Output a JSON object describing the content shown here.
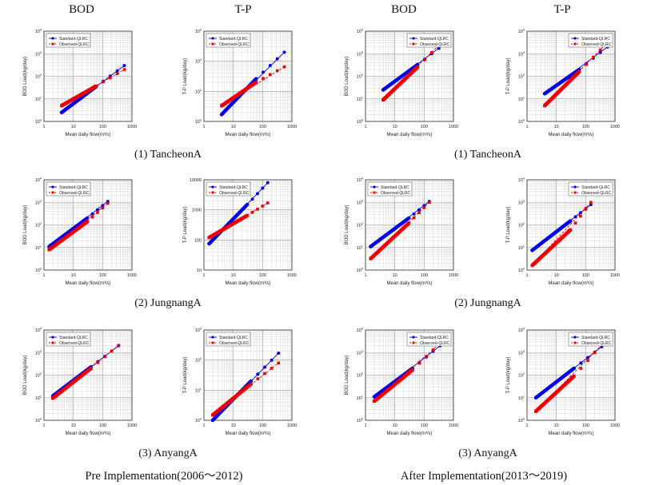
{
  "headers": {
    "pre_bod": "BOD",
    "pre_tp": "T-P",
    "post_bod": "BOD",
    "post_tp": "T-P"
  },
  "row_captions": {
    "pre": [
      "(1)  TancheonA",
      "(2)  JungnangA",
      "(3)  AnyangA"
    ],
    "post": [
      "(1)  TancheonA",
      "(2)  JungnangA",
      "(3)  AnyangA"
    ]
  },
  "footers": {
    "pre": "Pre Implementation(2006～2012)",
    "post": "After Implementation(2013～2019)"
  },
  "colors": {
    "standard": "#0000ee",
    "observed": "#ee0000",
    "grid": "#c8c8c8"
  },
  "chart_data": [
    {
      "id": "p11",
      "type": "line",
      "scale": "log-log",
      "xlabel": "Mean daily flow(m³/s)",
      "ylabel": "BOD Load(kg/day)",
      "xlim": [
        1,
        1000
      ],
      "ylim": [
        1,
        10000
      ],
      "xticks": [
        "1",
        "10",
        "100",
        "1000"
      ],
      "yticks": [
        "10^0",
        "10^1",
        "10^2",
        "10^3",
        "10^4"
      ],
      "legend": "top-left",
      "series": [
        {
          "name": "Standard-QLRC",
          "x0": 4,
          "x1": 60,
          "xe": 550,
          "y0": 2.5,
          "y1": 35,
          "ye": 300
        },
        {
          "name": "Observed-QLRC",
          "x0": 4,
          "x1": 60,
          "xe": 550,
          "y0": 5,
          "y1": 37,
          "ye": 200
        }
      ]
    },
    {
      "id": "p12",
      "type": "line",
      "scale": "log-log",
      "xlabel": "Mean daily flow(m³/s)",
      "ylabel": "T-P Load(kg/day)",
      "xlim": [
        1,
        1000
      ],
      "ylim": [
        1,
        1000
      ],
      "xticks": [
        "1",
        "10",
        "100",
        "1000"
      ],
      "yticks": [
        "10^0",
        "10^1",
        "10^2",
        "10^3"
      ],
      "legend": "top-left",
      "series": [
        {
          "name": "Standard-QLRC",
          "x0": 4,
          "x1": 60,
          "xe": 550,
          "y0": 1.7,
          "y1": 26,
          "ye": 200
        },
        {
          "name": "Observed-QLRC",
          "x0": 4,
          "x1": 60,
          "xe": 550,
          "y0": 3.3,
          "y1": 20,
          "ye": 65
        }
      ]
    },
    {
      "id": "p13",
      "type": "line",
      "scale": "log-log",
      "xlabel": "Mean daily flow(m³/s)",
      "ylabel": "BOD Load(kg/day)",
      "xlim": [
        1,
        1000
      ],
      "ylim": [
        1,
        10000
      ],
      "xticks": [
        "1",
        "10",
        "100",
        "1000"
      ],
      "yticks": [
        "10^0",
        "10^1",
        "10^2",
        "10^3",
        "10^4"
      ],
      "legend": "top-right",
      "series": [
        {
          "name": "Standard-QLRC",
          "x0": 4,
          "x1": 60,
          "xe": 550,
          "y0": 25,
          "y1": 330,
          "ye": 3000
        },
        {
          "name": "Observed-QLRC",
          "x0": 4,
          "x1": 60,
          "xe": 550,
          "y0": 9,
          "y1": 260,
          "ye": 4800
        }
      ]
    },
    {
      "id": "p14",
      "type": "line",
      "scale": "log-log",
      "xlabel": "Mean daily flow(m³/s)",
      "ylabel": "T-P Load(kg/day)",
      "xlim": [
        1,
        1000
      ],
      "ylim": [
        1,
        10000
      ],
      "xticks": [
        "1",
        "10",
        "100",
        "1000"
      ],
      "yticks": [
        "10^0",
        "10^1",
        "10^2",
        "10^3",
        "10^4"
      ],
      "legend": "top-right",
      "series": [
        {
          "name": "Standard-QLRC",
          "x0": 4,
          "x1": 60,
          "xe": 550,
          "y0": 17,
          "y1": 200,
          "ye": 2000
        },
        {
          "name": "Observed-QLRC",
          "x0": 4,
          "x1": 60,
          "xe": 550,
          "y0": 5,
          "y1": 160,
          "ye": 3100
        }
      ]
    },
    {
      "id": "p21",
      "type": "line",
      "scale": "log-log",
      "xlabel": "Mean daily flow(m³/s)",
      "ylabel": "BOD Load(kg/day)",
      "xlim": [
        1,
        1000
      ],
      "ylim": [
        1,
        10000
      ],
      "xticks": [
        "1",
        "10",
        "100",
        "1000"
      ],
      "yticks": [
        "10^0",
        "10^1",
        "10^2",
        "10^3",
        "10^4"
      ],
      "legend": "top-left",
      "series": [
        {
          "name": "Standard-QLRC",
          "x0": 1.5,
          "x1": 30,
          "xe": 150,
          "y0": 11,
          "y1": 200,
          "ye": 1100
        },
        {
          "name": "Observed-QLRC",
          "x0": 1.5,
          "x1": 30,
          "xe": 150,
          "y0": 8,
          "y1": 140,
          "ye": 900
        }
      ]
    },
    {
      "id": "p22",
      "type": "line",
      "scale": "log-log",
      "xlabel": "Mean daily flow(m³/s)",
      "ylabel": "T-P Load(kg/day)",
      "xlim": [
        1,
        1000
      ],
      "ylim": [
        10,
        10000
      ],
      "xticks": [
        "1",
        "10",
        "100",
        "1000"
      ],
      "yticks": [
        "10",
        "100",
        "1000",
        "10000"
      ],
      "legend": "top-left",
      "series": [
        {
          "name": "Standard-QLRC",
          "x0": 1.5,
          "x1": 30,
          "xe": 150,
          "y0": 75,
          "y1": 1500,
          "ye": 8000
        },
        {
          "name": "Observed-QLRC",
          "x0": 1.5,
          "x1": 30,
          "xe": 150,
          "y0": 120,
          "y1": 650,
          "ye": 1700
        }
      ]
    },
    {
      "id": "p23",
      "type": "line",
      "scale": "log-log",
      "xlabel": "Mean daily flow(m³/s)",
      "ylabel": "BOD Load(kg/day)",
      "xlim": [
        1,
        1000
      ],
      "ylim": [
        1,
        10000
      ],
      "xticks": [
        "1",
        "10",
        "100",
        "1000"
      ],
      "yticks": [
        "10^0",
        "10^1",
        "10^2",
        "10^3",
        "10^4"
      ],
      "legend": "top-left",
      "series": [
        {
          "name": "Standard-QLRC",
          "x0": 1.5,
          "x1": 30,
          "xe": 150,
          "y0": 11,
          "y1": 200,
          "ye": 1100
        },
        {
          "name": "Observed-QLRC",
          "x0": 1.5,
          "x1": 30,
          "xe": 150,
          "y0": 3.2,
          "y1": 120,
          "ye": 1000
        }
      ]
    },
    {
      "id": "p24",
      "type": "line",
      "scale": "log-log",
      "xlabel": "Mean daily flow(m³/s)",
      "ylabel": "T-P Load(kg/day)",
      "xlim": [
        1,
        1000
      ],
      "ylim": [
        1,
        10000
      ],
      "xticks": [
        "1",
        "10",
        "100",
        "1000"
      ],
      "yticks": [
        "10^0",
        "10^1",
        "10^2",
        "10^3",
        "10^4"
      ],
      "legend": "top-right",
      "series": [
        {
          "name": "Standard-QLRC",
          "x0": 1.5,
          "x1": 30,
          "xe": 150,
          "y0": 7.5,
          "y1": 150,
          "ye": 800
        },
        {
          "name": "Observed-QLRC",
          "x0": 1.5,
          "x1": 30,
          "xe": 150,
          "y0": 1.6,
          "y1": 60,
          "ye": 1000
        }
      ]
    },
    {
      "id": "p31",
      "type": "line",
      "scale": "log-log",
      "xlabel": "Mean daily flow(m³/s)",
      "ylabel": "BOD Load(kg/day)",
      "xlim": [
        1,
        1000
      ],
      "ylim": [
        1,
        10000
      ],
      "xticks": [
        "1",
        "10",
        "100",
        "1000"
      ],
      "yticks": [
        "10^0",
        "10^1",
        "10^2",
        "10^3",
        "10^4"
      ],
      "legend": "top-left",
      "series": [
        {
          "name": "Standard-QLRC",
          "x0": 2,
          "x1": 40,
          "xe": 350,
          "y0": 12,
          "y1": 230,
          "ye": 2000
        },
        {
          "name": "Observed-QLRC",
          "x0": 2,
          "x1": 40,
          "xe": 350,
          "y0": 9.5,
          "y1": 200,
          "ye": 2100
        }
      ]
    },
    {
      "id": "p32",
      "type": "line",
      "scale": "log-log",
      "xlabel": "Mean daily flow(m³/s)",
      "ylabel": "T-P Load(kg/day)",
      "xlim": [
        1,
        1000
      ],
      "ylim": [
        1,
        1000
      ],
      "xticks": [
        "1",
        "10",
        "100",
        "1000"
      ],
      "yticks": [
        "10^0",
        "10^1",
        "10^2",
        "10^3"
      ],
      "legend": "top-left",
      "series": [
        {
          "name": "Standard-QLRC",
          "x0": 2,
          "x1": 40,
          "xe": 350,
          "y0": 1,
          "y1": 20,
          "ye": 170
        },
        {
          "name": "Observed-QLRC",
          "x0": 2,
          "x1": 40,
          "xe": 350,
          "y0": 1.5,
          "y1": 16,
          "ye": 80
        }
      ]
    },
    {
      "id": "p33",
      "type": "line",
      "scale": "log-log",
      "xlabel": "Mean daily flow(m³/s)",
      "ylabel": "BOD Load(kg/day)",
      "xlim": [
        1,
        1000
      ],
      "ylim": [
        1,
        10000
      ],
      "xticks": [
        "1",
        "10",
        "100",
        "1000"
      ],
      "yticks": [
        "10^0",
        "10^1",
        "10^2",
        "10^3",
        "10^4"
      ],
      "legend": "top-right",
      "series": [
        {
          "name": "Standard-QLRC",
          "x0": 2,
          "x1": 40,
          "xe": 350,
          "y0": 11,
          "y1": 200,
          "ye": 2000
        },
        {
          "name": "Observed-QLRC",
          "x0": 2,
          "x1": 40,
          "xe": 350,
          "y0": 7,
          "y1": 170,
          "ye": 2600
        }
      ]
    },
    {
      "id": "p34",
      "type": "line",
      "scale": "log-log",
      "xlabel": "Mean daily flow(m³/s)",
      "ylabel": "T-P Load(kg/day)",
      "xlim": [
        1,
        1000
      ],
      "ylim": [
        1,
        10000
      ],
      "xticks": [
        "1",
        "10",
        "100",
        "1000"
      ],
      "yticks": [
        "10^0",
        "10^1",
        "10^2",
        "10^3",
        "10^4"
      ],
      "legend": "top-right",
      "series": [
        {
          "name": "Standard-QLRC",
          "x0": 2,
          "x1": 40,
          "xe": 350,
          "y0": 10,
          "y1": 200,
          "ye": 1800
        },
        {
          "name": "Observed-QLRC",
          "x0": 2,
          "x1": 40,
          "xe": 350,
          "y0": 2.5,
          "y1": 90,
          "ye": 2200
        }
      ]
    }
  ]
}
